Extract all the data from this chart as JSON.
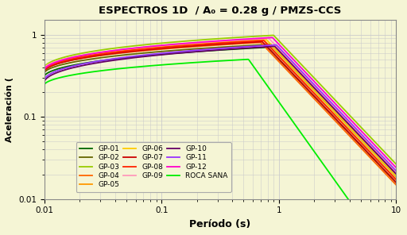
{
  "title": "ESPECTROS 1D  / A₀ = 0.28 g / PMZS-CCS",
  "xlabel": "Período (s)",
  "ylabel": "Aceleración (",
  "xlim": [
    0.01,
    10
  ],
  "ylim": [
    0.01,
    1.5
  ],
  "background_color": "#f5f5d5",
  "grid_color": "#cccccc",
  "series": [
    {
      "name": "GP-01",
      "color": "#006600",
      "Sa0": 0.31,
      "peak": 0.7,
      "Tpeak": 0.8,
      "exp": 1.5
    },
    {
      "name": "GP-02",
      "color": "#666600",
      "Sa0": 0.34,
      "peak": 0.76,
      "Tpeak": 0.85,
      "exp": 1.5
    },
    {
      "name": "GP-03",
      "color": "#99cc00",
      "Sa0": 0.395,
      "peak": 0.98,
      "Tpeak": 0.9,
      "exp": 1.5
    },
    {
      "name": "GP-04",
      "color": "#ff6600",
      "Sa0": 0.36,
      "peak": 0.8,
      "Tpeak": 0.7,
      "exp": 1.5
    },
    {
      "name": "GP-05",
      "color": "#ff9900",
      "Sa0": 0.375,
      "peak": 0.85,
      "Tpeak": 0.75,
      "exp": 1.5
    },
    {
      "name": "GP-06",
      "color": "#ffcc00",
      "Sa0": 0.39,
      "peak": 0.87,
      "Tpeak": 0.78,
      "exp": 1.5
    },
    {
      "name": "GP-07",
      "color": "#cc0000",
      "Sa0": 0.355,
      "peak": 0.82,
      "Tpeak": 0.72,
      "exp": 1.5
    },
    {
      "name": "GP-08",
      "color": "#ff2200",
      "Sa0": 0.365,
      "peak": 0.85,
      "Tpeak": 0.74,
      "exp": 1.5
    },
    {
      "name": "GP-09",
      "color": "#ff99bb",
      "Sa0": 0.385,
      "peak": 0.9,
      "Tpeak": 0.82,
      "exp": 1.5
    },
    {
      "name": "GP-10",
      "color": "#660066",
      "Sa0": 0.265,
      "peak": 0.72,
      "Tpeak": 0.92,
      "exp": 1.5
    },
    {
      "name": "GP-11",
      "color": "#9933ff",
      "Sa0": 0.28,
      "peak": 0.75,
      "Tpeak": 0.95,
      "exp": 1.5
    },
    {
      "name": "GP-12",
      "color": "#ff00cc",
      "Sa0": 0.37,
      "peak": 0.92,
      "Tpeak": 0.88,
      "exp": 1.5
    },
    {
      "name": "ROCA SANA",
      "color": "#00ee00",
      "Sa0": 0.245,
      "peak": 0.5,
      "Tpeak": 0.55,
      "exp": 2.0
    }
  ]
}
